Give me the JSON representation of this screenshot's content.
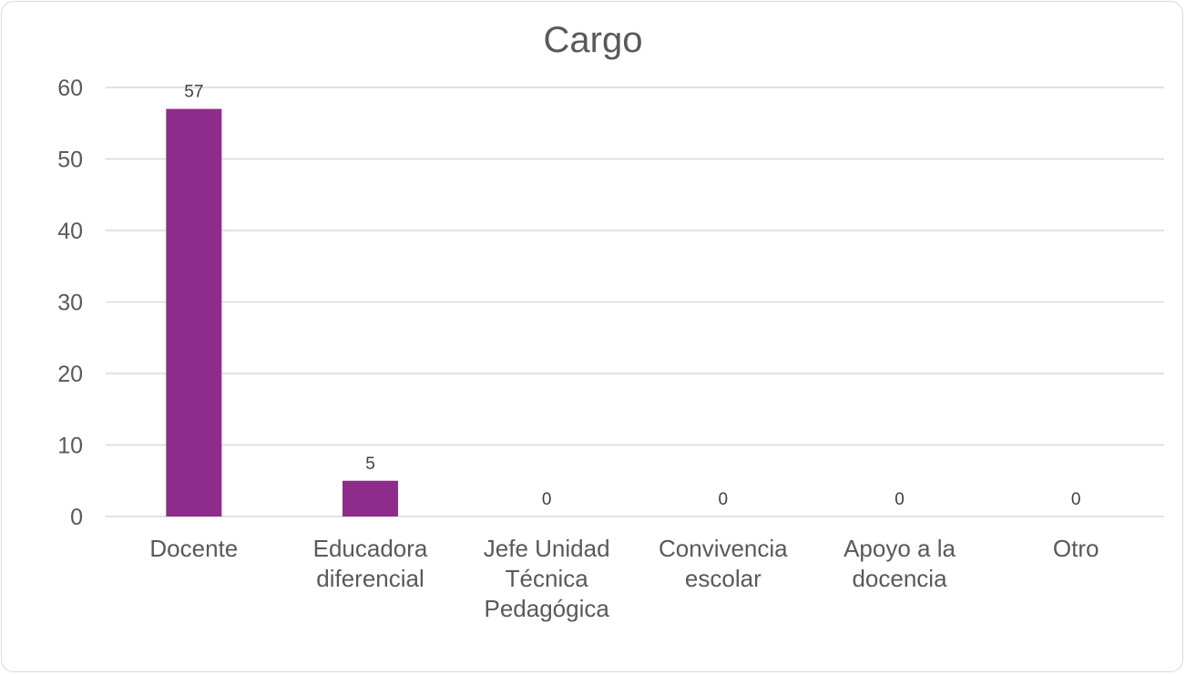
{
  "chart_data": {
    "type": "bar",
    "title": "Cargo",
    "xlabel": "",
    "ylabel": "",
    "categories": [
      [
        "Docente"
      ],
      [
        "Educadora",
        "diferencial"
      ],
      [
        "Jefe Unidad",
        "Técnica",
        "Pedagógica"
      ],
      [
        "Convivencia",
        "escolar"
      ],
      [
        "Apoyo a la",
        "docencia"
      ],
      [
        "Otro"
      ]
    ],
    "values": [
      57,
      5,
      0,
      0,
      0,
      0
    ],
    "data_labels": [
      "57",
      "5",
      "0",
      "0",
      "0",
      "0"
    ],
    "ylim": [
      0,
      60
    ],
    "yticks": [
      0,
      10,
      20,
      30,
      40,
      50,
      60
    ],
    "grid": true,
    "legend": "none",
    "bar_color": "#8e2c8b"
  }
}
